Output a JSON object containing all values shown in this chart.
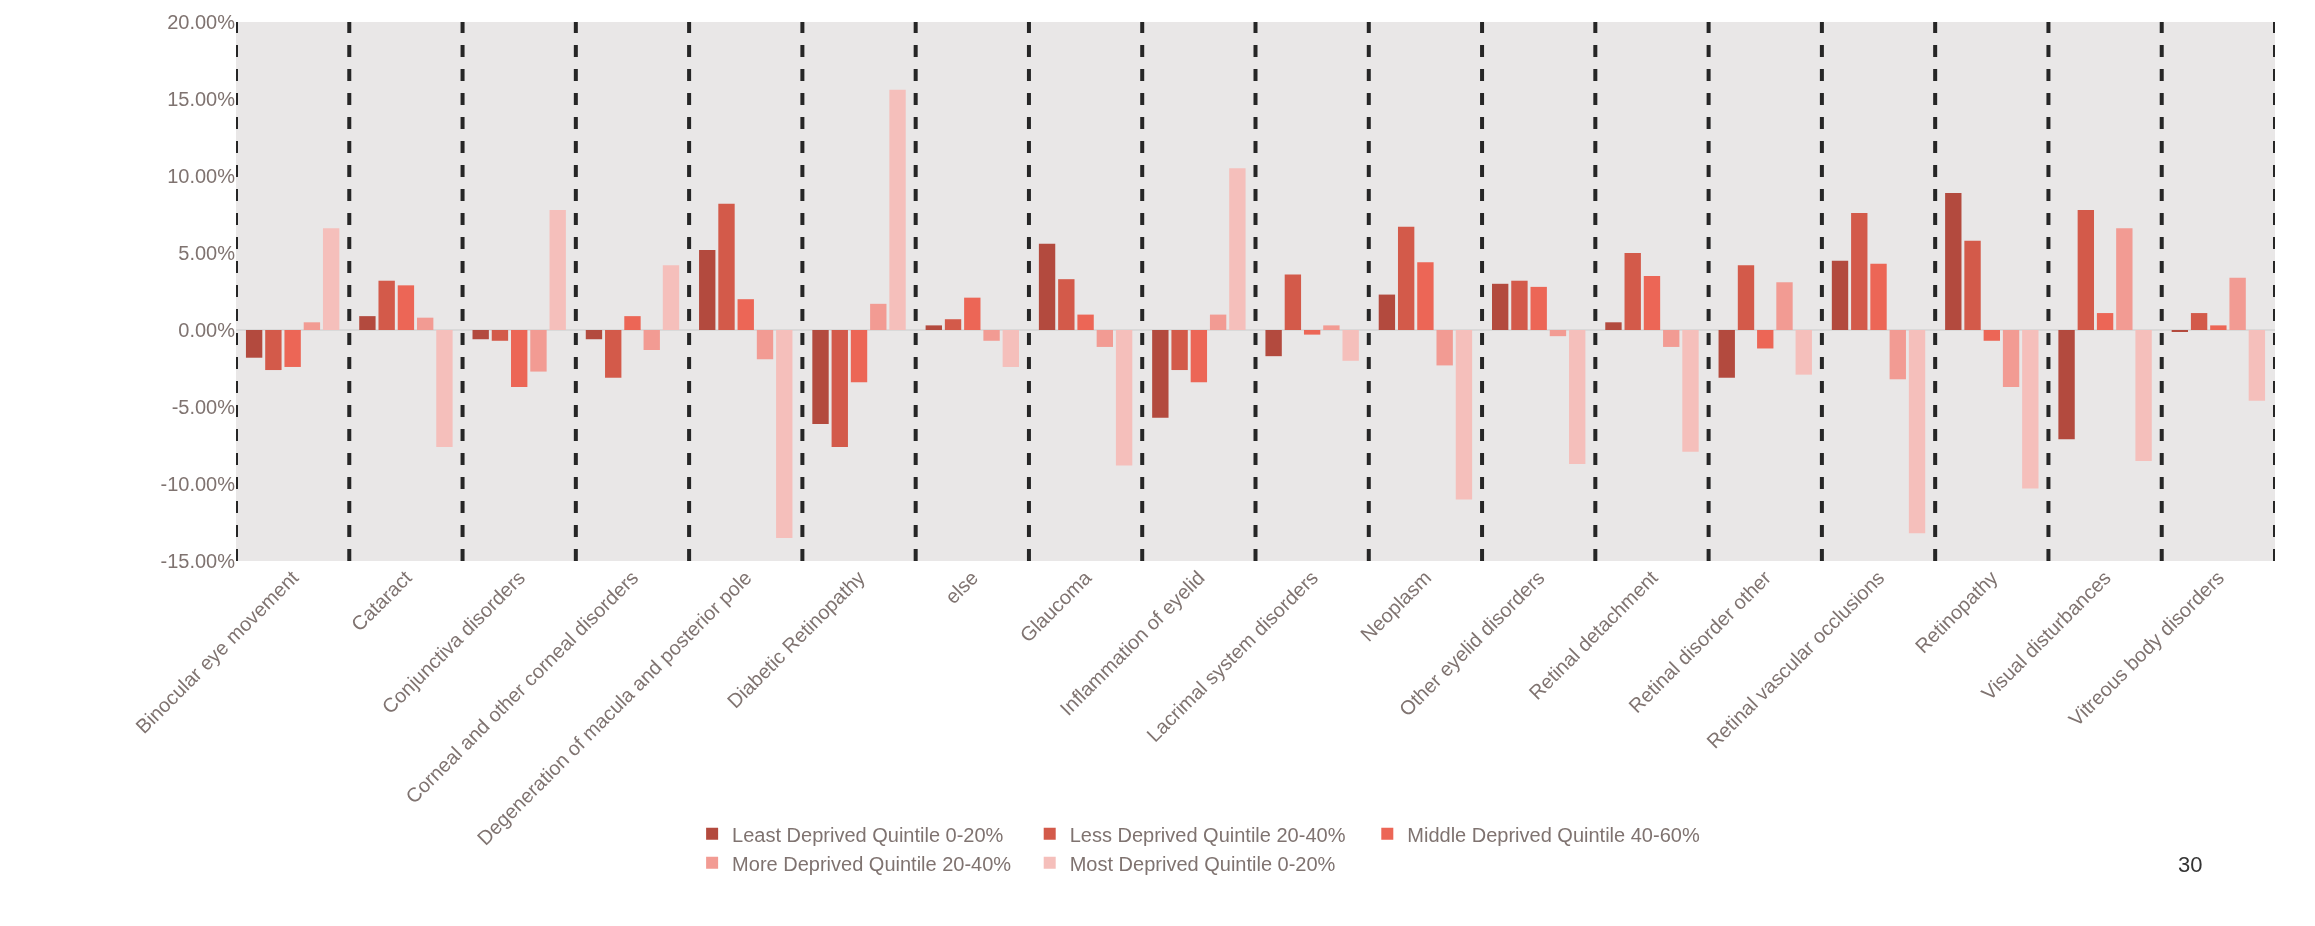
{
  "chart_data": {
    "type": "bar",
    "categories": [
      "Binocular eye movement",
      "Cataract",
      "Conjunctiva disorders",
      "Corneal and other corneal disorders",
      "Degeneration of macula and posterior pole",
      "Diabetic Retinopathy",
      "else",
      "Glaucoma",
      "Inflammation of eyelid",
      "Lacrimal system disorders",
      "Neoplasm",
      "Other eyelid disorders",
      "Retinal detachment",
      "Retinal disorder other",
      "Retinal vascular occlusions",
      "Retinopathy",
      "Visual disturbances",
      "Vitreous body disorders"
    ],
    "series": [
      {
        "name": "Least Deprived Quintile 0-20%",
        "color": "#b34a3e",
        "values": [
          -1.8,
          0.9,
          -0.6,
          -0.6,
          5.2,
          -6.1,
          0.3,
          5.6,
          -5.7,
          -1.7,
          2.3,
          3.0,
          0.5,
          -3.1,
          4.5,
          8.9,
          -7.1,
          -0.1
        ]
      },
      {
        "name": "Less Deprived Quintile 20-40%",
        "color": "#d35a4a",
        "values": [
          -2.6,
          3.2,
          -0.7,
          -3.1,
          8.2,
          -7.6,
          0.7,
          3.3,
          -2.6,
          3.6,
          6.7,
          3.2,
          5.0,
          4.2,
          7.6,
          5.8,
          7.8,
          1.1
        ]
      },
      {
        "name": "Middle Deprived Quintile 40-60%",
        "color": "#ec6656",
        "values": [
          -2.4,
          2.9,
          -3.7,
          0.9,
          2.0,
          -3.4,
          2.1,
          1.0,
          -3.4,
          -0.3,
          4.4,
          2.8,
          3.5,
          -1.2,
          4.3,
          -0.7,
          1.1,
          0.3
        ]
      },
      {
        "name": "More Deprived Quintile 20-40%",
        "color": "#f29b93",
        "values": [
          0.5,
          0.8,
          -2.7,
          -1.3,
          -1.9,
          1.7,
          -0.7,
          -1.1,
          1.0,
          0.3,
          -2.3,
          -0.4,
          -1.1,
          3.1,
          -3.2,
          -3.7,
          6.6,
          3.4
        ]
      },
      {
        "name": "Most Deprived Quintile 0-20%",
        "color": "#f5bfbb",
        "values": [
          6.6,
          -7.6,
          7.8,
          4.2,
          -13.5,
          15.6,
          -2.4,
          -8.8,
          10.5,
          -2.0,
          -11.0,
          -8.7,
          -7.9,
          -2.9,
          -13.2,
          -10.3,
          -8.5,
          -4.6
        ]
      }
    ],
    "ylim": [
      -15,
      20
    ],
    "yticks": [
      {
        "value": -15,
        "label": "-15.00%"
      },
      {
        "value": -10,
        "label": "-10.00%"
      },
      {
        "value": -5,
        "label": "-5.00%"
      },
      {
        "value": 0,
        "label": "0.00%"
      },
      {
        "value": 5,
        "label": "5.00%"
      },
      {
        "value": 10,
        "label": "10.00%"
      },
      {
        "value": 15,
        "label": "15.00%"
      },
      {
        "value": 20,
        "label": "20.00%"
      }
    ],
    "grid": "x",
    "legend": "bottom",
    "annotations": [
      "30"
    ]
  }
}
